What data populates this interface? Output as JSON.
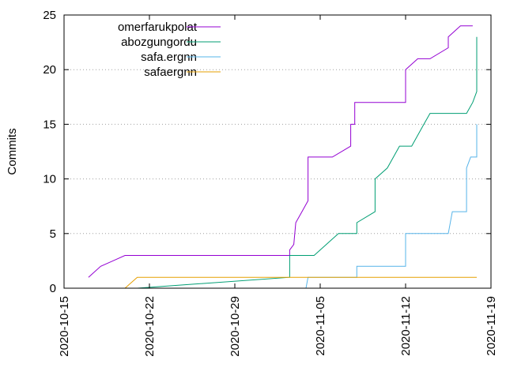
{
  "chart_data": {
    "type": "line",
    "title": "",
    "xlabel": "",
    "ylabel": "Commits",
    "xlim": [
      "2020-10-15",
      "2020-11-19"
    ],
    "ylim": [
      0,
      25
    ],
    "y_ticks": [
      0,
      5,
      10,
      15,
      20,
      25
    ],
    "x_ticks": [
      "2020-10-15",
      "2020-10-22",
      "2020-10-29",
      "2020-11-05",
      "2020-11-12",
      "2020-11-19"
    ],
    "grid": "horizontal dotted",
    "legend_position": "top-left",
    "series": [
      {
        "name": "omerfarukpolat",
        "color": "#9400d3",
        "points": [
          [
            "2020-10-17T00:00",
            1
          ],
          [
            "2020-10-18T00:00",
            2
          ],
          [
            "2020-10-19T00:00",
            2.5
          ],
          [
            "2020-10-20T00:00",
            3
          ],
          [
            "2020-11-02T12:00",
            3
          ],
          [
            "2020-11-02T12:00",
            3.5
          ],
          [
            "2020-11-02T20:00",
            4
          ],
          [
            "2020-11-03T00:00",
            6
          ],
          [
            "2020-11-03T12:00",
            7
          ],
          [
            "2020-11-04T00:00",
            8
          ],
          [
            "2020-11-04T00:00",
            12
          ],
          [
            "2020-11-06T00:00",
            12
          ],
          [
            "2020-11-07T12:00",
            13
          ],
          [
            "2020-11-07T12:00",
            15
          ],
          [
            "2020-11-07T20:00",
            15
          ],
          [
            "2020-11-07T20:00",
            17
          ],
          [
            "2020-11-12T00:00",
            17
          ],
          [
            "2020-11-12T00:00",
            20
          ],
          [
            "2020-11-13T00:00",
            21
          ],
          [
            "2020-11-14T00:00",
            21
          ],
          [
            "2020-11-15T12:00",
            22
          ],
          [
            "2020-11-15T12:00",
            23
          ],
          [
            "2020-11-16T12:00",
            24
          ],
          [
            "2020-11-17T12:00",
            24
          ]
        ]
      },
      {
        "name": "abozgungordu",
        "color": "#009e73",
        "points": [
          [
            "2020-10-21T00:00",
            0
          ],
          [
            "2020-11-02T12:00",
            1
          ],
          [
            "2020-11-02T12:00",
            3
          ],
          [
            "2020-11-04T12:00",
            3
          ],
          [
            "2020-11-05T12:00",
            4
          ],
          [
            "2020-11-06T12:00",
            5
          ],
          [
            "2020-11-08T00:00",
            5
          ],
          [
            "2020-11-08T00:00",
            6
          ],
          [
            "2020-11-09T12:00",
            7
          ],
          [
            "2020-11-09T12:00",
            10
          ],
          [
            "2020-11-10T12:00",
            11
          ],
          [
            "2020-11-11T12:00",
            13
          ],
          [
            "2020-11-12T12:00",
            13
          ],
          [
            "2020-11-13T12:00",
            15
          ],
          [
            "2020-11-14T00:00",
            16
          ],
          [
            "2020-11-17T00:00",
            16
          ],
          [
            "2020-11-17T12:00",
            17
          ],
          [
            "2020-11-17T20:00",
            18
          ],
          [
            "2020-11-17T20:00",
            23
          ]
        ]
      },
      {
        "name": "safa.ergnn",
        "color": "#56b4e9",
        "points": [
          [
            "2020-11-03T20:00",
            0
          ],
          [
            "2020-11-04T00:00",
            1
          ],
          [
            "2020-11-08T00:00",
            1
          ],
          [
            "2020-11-08T00:00",
            2
          ],
          [
            "2020-11-12T00:00",
            2
          ],
          [
            "2020-11-12T00:00",
            5
          ],
          [
            "2020-11-15T12:00",
            5
          ],
          [
            "2020-11-15T20:00",
            7
          ],
          [
            "2020-11-17T00:00",
            7
          ],
          [
            "2020-11-17T00:00",
            11
          ],
          [
            "2020-11-17T08:00",
            12
          ],
          [
            "2020-11-17T20:00",
            12
          ],
          [
            "2020-11-17T20:00",
            15
          ]
        ]
      },
      {
        "name": "safaergnn",
        "color": "#e69f00",
        "points": [
          [
            "2020-10-20T00:00",
            0
          ],
          [
            "2020-10-21T00:00",
            1
          ],
          [
            "2020-11-17T20:00",
            1
          ]
        ]
      }
    ]
  }
}
